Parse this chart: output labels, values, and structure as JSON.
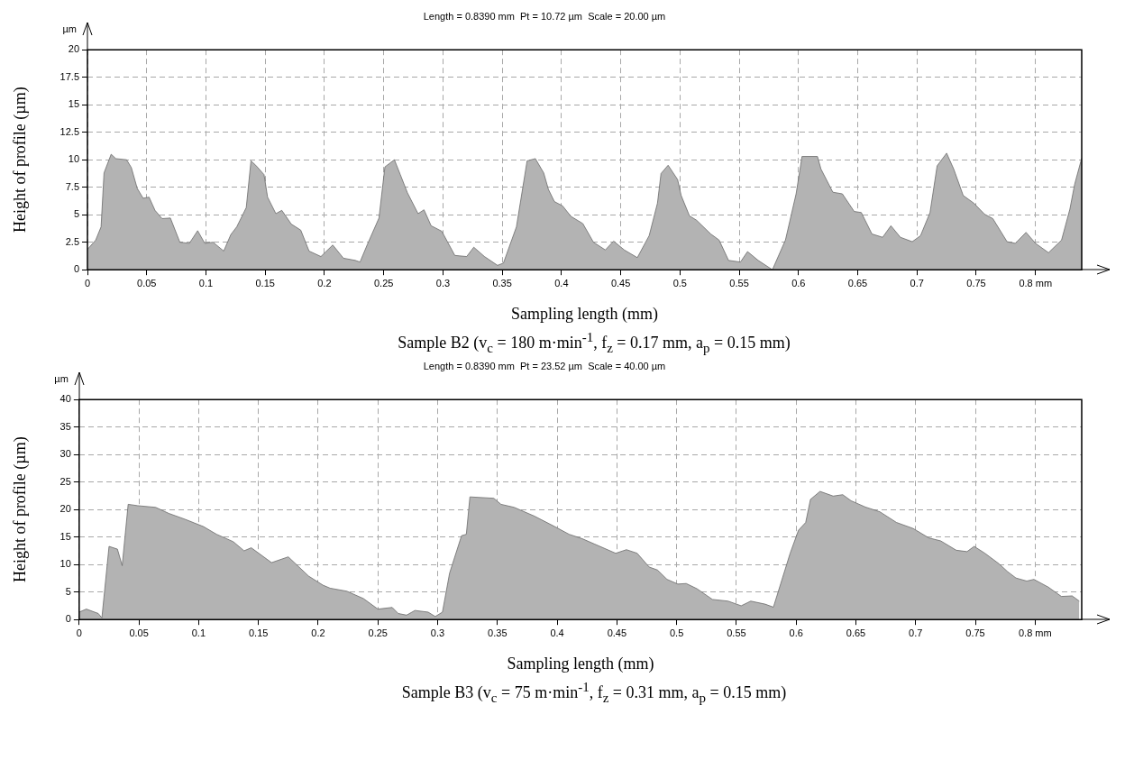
{
  "chart_data": [
    {
      "type": "area",
      "subtitle": "Length = 0.8390 mm  Pt = 10.72 µm  Scale = 20.00 µm",
      "xlabel": "Sampling length (mm)",
      "ylabel": "Height of profile (µm)",
      "annotations": [
        "µm",
        "Sample B2 (v$_{c}$ = 180 m·min$^{-1}$, f$_{z}$ = 0.17 mm, a$_{p}$ = 0.15 mm)"
      ],
      "series": [
        {
          "color": "#b3b3b3",
          "x": [
            0,
            0.007,
            0.0115,
            0.014,
            0.02,
            0.024,
            0.033,
            0.037,
            0.042,
            0.047,
            0.052,
            0.057,
            0.063,
            0.07,
            0.078,
            0.086,
            0.093,
            0.099,
            0.106,
            0.115,
            0.121,
            0.126,
            0.134,
            0.138,
            0.142,
            0.149,
            0.152,
            0.159,
            0.164,
            0.172,
            0.18,
            0.187,
            0.197,
            0.207,
            0.216,
            0.226,
            0.23,
            0.236,
            0.246,
            0.251,
            0.259,
            0.264,
            0.27,
            0.279,
            0.284,
            0.29,
            0.299,
            0.31,
            0.32,
            0.326,
            0.335,
            0.346,
            0.351,
            0.362,
            0.371,
            0.378,
            0.385,
            0.389,
            0.394,
            0.401,
            0.408,
            0.418,
            0.427,
            0.437,
            0.444,
            0.453,
            0.464,
            0.474,
            0.481,
            0.484,
            0.49,
            0.498,
            0.501,
            0.508,
            0.514,
            0.526,
            0.533,
            0.541,
            0.551,
            0.557,
            0.566,
            0.578,
            0.589,
            0.598,
            0.603,
            0.616,
            0.619,
            0.629,
            0.637,
            0.647,
            0.653,
            0.662,
            0.671,
            0.678,
            0.686,
            0.696,
            0.703,
            0.711,
            0.717,
            0.725,
            0.731,
            0.739,
            0.748,
            0.757,
            0.764,
            0.776,
            0.783,
            0.792,
            0.8,
            0.811,
            0.822,
            0.829,
            0.833,
            0.839
          ],
          "values": [
            1.85,
            2.7,
            3.9,
            8.8,
            10.5,
            10.1,
            10,
            9.3,
            7.4,
            6.5,
            6.6,
            5.4,
            4.65,
            4.7,
            2.5,
            2.4,
            3.55,
            2.4,
            2.5,
            1.7,
            3.2,
            3.9,
            5.65,
            9.9,
            9.5,
            8.65,
            6.6,
            5.1,
            5.4,
            4.15,
            3.6,
            1.7,
            1.2,
            2.25,
            1.05,
            0.85,
            0.7,
            2.25,
            4.7,
            9.35,
            10,
            8.65,
            7,
            5.1,
            5.45,
            4,
            3.5,
            1.3,
            1.2,
            2.05,
            1.2,
            0.4,
            0.6,
            3.9,
            9.9,
            10.1,
            8.8,
            7.3,
            6.2,
            5.8,
            4.85,
            4.2,
            2.5,
            1.8,
            2.6,
            1.8,
            1.1,
            3.1,
            6.05,
            8.75,
            9.5,
            8.2,
            6.75,
            4.9,
            4.5,
            3.25,
            2.7,
            0.85,
            0.7,
            1.65,
            0.85,
            0,
            2.7,
            6.9,
            10.3,
            10.3,
            9.15,
            7.05,
            6.9,
            5.3,
            5.2,
            3.25,
            2.95,
            4,
            2.95,
            2.55,
            3.1,
            5.2,
            9.45,
            10.6,
            9.15,
            6.75,
            6.05,
            5.05,
            4.65,
            2.55,
            2.4,
            3.4,
            2.4,
            1.55,
            2.7,
            5.5,
            7.75,
            10.15
          ]
        }
      ],
      "xlim": [
        0,
        0.839
      ],
      "xticks": [
        0,
        0.05,
        0.1,
        0.15,
        0.2,
        0.25,
        0.3,
        0.35,
        0.4,
        0.45,
        0.5,
        0.55,
        0.6,
        0.65,
        0.7,
        0.75,
        {
          "value": 0.8,
          "label": "0.8 mm"
        }
      ],
      "ylim": [
        0,
        20
      ],
      "yticks": [
        0,
        2.5,
        5,
        7.5,
        10,
        12.5,
        15,
        17.5,
        20
      ],
      "grid": true
    },
    {
      "type": "area",
      "subtitle": "Length = 0.8390 mm  Pt = 23.52 µm  Scale = 40.00 µm",
      "xlabel": "Sampling length (mm)",
      "ylabel": "Height of profile (µm)",
      "annotations": [
        "µm",
        "Sample B3 (v$_{c}$ = 75 m·min$^{-1}$, f$_{z}$ = 0.31 mm, a$_{p}$ = 0.15 mm)"
      ],
      "series": [
        {
          "color": "#b3b3b3",
          "x": [
            0,
            0.006,
            0.016,
            0.019,
            0.025,
            0.032,
            0.036,
            0.041,
            0.049,
            0.064,
            0.075,
            0.089,
            0.104,
            0.115,
            0.129,
            0.138,
            0.144,
            0.161,
            0.175,
            0.192,
            0.204,
            0.21,
            0.224,
            0.238,
            0.25,
            0.262,
            0.267,
            0.274,
            0.281,
            0.292,
            0.298,
            0.304,
            0.31,
            0.32,
            0.324,
            0.327,
            0.347,
            0.353,
            0.364,
            0.381,
            0.398,
            0.41,
            0.421,
            0.431,
            0.449,
            0.458,
            0.467,
            0.477,
            0.484,
            0.492,
            0.501,
            0.508,
            0.517,
            0.53,
            0.543,
            0.554,
            0.562,
            0.574,
            0.581,
            0.587,
            0.595,
            0.602,
            0.608,
            0.612,
            0.62,
            0.631,
            0.639,
            0.646,
            0.658,
            0.67,
            0.684,
            0.698,
            0.711,
            0.721,
            0.734,
            0.743,
            0.749,
            0.758,
            0.77,
            0.777,
            0.784,
            0.793,
            0.799,
            0.811,
            0.822,
            0.831,
            0.837
          ],
          "values": [
            1.35,
            1.9,
            1.1,
            0.3,
            13.3,
            12.8,
            9.8,
            20.95,
            20.7,
            20.4,
            19.3,
            18.2,
            16.9,
            15.5,
            14.15,
            12.5,
            13.05,
            10.35,
            11.4,
            7.9,
            6.25,
            5.7,
            5.15,
            3.8,
            1.9,
            2.2,
            1.1,
            0.8,
            1.65,
            1.35,
            0.55,
            1.35,
            8.45,
            15.25,
            15.5,
            22.3,
            22.05,
            20.95,
            20.4,
            18.8,
            16.9,
            15.5,
            14.7,
            13.75,
            12.05,
            12.7,
            12.05,
            9.55,
            9,
            7.3,
            6.45,
            6.55,
            5.6,
            3.65,
            3.35,
            2.5,
            3.35,
            2.8,
            2.25,
            6.45,
            12.05,
            16.25,
            17.65,
            21.85,
            23.3,
            22.45,
            22.7,
            21.6,
            20.45,
            19.6,
            17.65,
            16.55,
            14.85,
            14.3,
            12.6,
            12.35,
            13.3,
            12.05,
            10.1,
            8.7,
            7.55,
            7,
            7.3,
            5.9,
            4.2,
            4.3,
            3.35
          ]
        }
      ],
      "xlim": [
        0,
        0.839
      ],
      "xticks": [
        0,
        0.05,
        0.1,
        0.15,
        0.2,
        0.25,
        0.3,
        0.35,
        0.4,
        0.45,
        0.5,
        0.55,
        0.6,
        0.65,
        0.7,
        0.75,
        {
          "value": 0.8,
          "label": "0.8 mm"
        }
      ],
      "ylim": [
        0,
        40
      ],
      "yticks": [
        0,
        5,
        10,
        15,
        20,
        25,
        30,
        35,
        40
      ],
      "grid": true
    }
  ]
}
